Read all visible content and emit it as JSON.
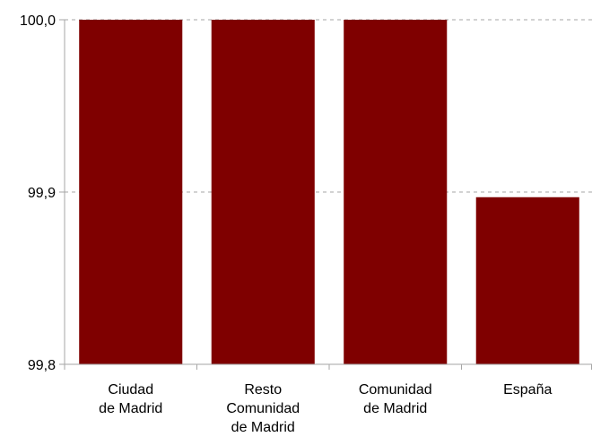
{
  "chart_data": {
    "type": "bar",
    "categories": [
      [
        "Ciudad",
        "de Madrid"
      ],
      [
        "Resto",
        "Comunidad",
        "de Madrid"
      ],
      [
        "Comunidad",
        "de Madrid"
      ],
      [
        "España"
      ]
    ],
    "values": [
      100.0,
      100.0,
      100.0,
      99.897
    ],
    "yticks": [
      "99,8",
      "99,9",
      "100,0"
    ],
    "ylim": [
      99.8,
      100.0
    ],
    "grid": true,
    "bar_color": "#7f0000",
    "title": "",
    "xlabel": "",
    "ylabel": ""
  }
}
